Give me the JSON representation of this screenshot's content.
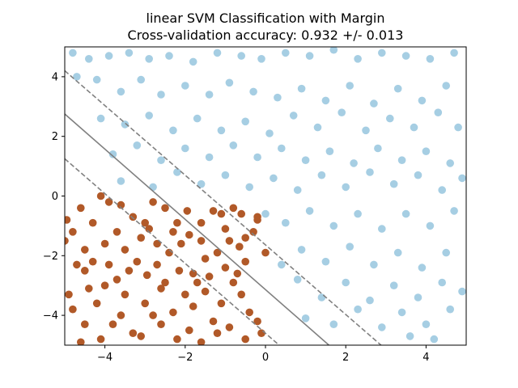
{
  "chart_data": {
    "type": "scatter",
    "title": "linear SVM Classification with Margin",
    "subtitle": "Cross-validation accuracy: 0.932 +/- 0.013",
    "xlim": [
      -5,
      5
    ],
    "ylim": [
      -5,
      5
    ],
    "x_ticks": [
      -4,
      -2,
      0,
      2,
      4
    ],
    "y_ticks": [
      -4,
      -2,
      0,
      2,
      4
    ],
    "x_tick_labels": [
      "−4",
      "−2",
      "0",
      "2",
      "4"
    ],
    "y_tick_labels": [
      "−4",
      "−2",
      "0",
      "2",
      "4"
    ],
    "grid": false,
    "decision_boundary": {
      "points": [
        [
          -5,
          2.75
        ],
        [
          1.58,
          -5
        ]
      ],
      "style": "solid",
      "color": "#808080"
    },
    "margins": [
      {
        "points": [
          [
            -5,
            4.2
          ],
          [
            2.88,
            -5
          ]
        ],
        "style": "dashed",
        "color": "#808080"
      },
      {
        "points": [
          [
            -5,
            1.25
          ],
          [
            0.34,
            -5
          ]
        ],
        "style": "dashed",
        "color": "#808080"
      }
    ],
    "colors": {
      "class_0": "#b15928",
      "class_1": "#a6cee3"
    },
    "series": [
      {
        "color": "#b15928",
        "points": [
          [
            -4.95,
            -0.8
          ],
          [
            -4.8,
            -1.2
          ],
          [
            -4.6,
            -0.4
          ],
          [
            -4.5,
            -1.8
          ],
          [
            -4.3,
            -0.9
          ],
          [
            -4.1,
            0.0
          ],
          [
            -3.9,
            -0.2
          ],
          [
            -3.6,
            -0.3
          ],
          [
            -3.3,
            -0.7
          ],
          [
            -3.0,
            -0.9
          ],
          [
            -2.8,
            -0.2
          ],
          [
            -2.5,
            -0.4
          ],
          [
            -2.2,
            -0.9
          ],
          [
            -1.9,
            -1.3
          ],
          [
            -1.6,
            -1.5
          ],
          [
            -1.3,
            -0.5
          ],
          [
            -1.1,
            -0.6
          ],
          [
            -0.8,
            -0.4
          ],
          [
            -0.6,
            -0.6
          ],
          [
            -0.2,
            -0.8
          ],
          [
            -5.0,
            -1.5
          ],
          [
            -4.7,
            -2.3
          ],
          [
            -4.5,
            -2.5
          ],
          [
            -4.3,
            -2.2
          ],
          [
            -3.9,
            -2.3
          ],
          [
            -3.5,
            -1.8
          ],
          [
            -3.2,
            -2.2
          ],
          [
            -2.9,
            -1.1
          ],
          [
            -2.7,
            -2.3
          ],
          [
            -2.4,
            -1.9
          ],
          [
            -2.1,
            -1.6
          ],
          [
            -1.8,
            -2.6
          ],
          [
            -1.5,
            -2.1
          ],
          [
            -1.2,
            -1.9
          ],
          [
            -0.9,
            -1.5
          ],
          [
            -0.5,
            -1.4
          ],
          [
            -0.3,
            -1.2
          ],
          [
            0.0,
            -1.9
          ],
          [
            -4.8,
            -3.8
          ],
          [
            -4.5,
            -4.3
          ],
          [
            -4.2,
            -3.6
          ],
          [
            -4.0,
            -3.0
          ],
          [
            -3.8,
            -4.3
          ],
          [
            -3.5,
            -3.3
          ],
          [
            -3.3,
            -4.6
          ],
          [
            -3.0,
            -3.6
          ],
          [
            -2.8,
            -4.0
          ],
          [
            -2.6,
            -3.1
          ],
          [
            -2.3,
            -3.9
          ],
          [
            -2.0,
            -3.3
          ],
          [
            -1.8,
            -3.7
          ],
          [
            -1.5,
            -3.2
          ],
          [
            -1.3,
            -4.2
          ],
          [
            -1.1,
            -3.6
          ],
          [
            -0.8,
            -2.9
          ],
          [
            -0.6,
            -3.3
          ],
          [
            -0.4,
            -3.9
          ],
          [
            -0.2,
            -4.2
          ],
          [
            -4.6,
            -4.9
          ],
          [
            -4.1,
            -4.8
          ],
          [
            -3.6,
            -4.0
          ],
          [
            -3.1,
            -4.7
          ],
          [
            -2.6,
            -4.3
          ],
          [
            -2.2,
            -4.8
          ],
          [
            -1.9,
            -4.5
          ],
          [
            -1.6,
            -4.9
          ],
          [
            -1.2,
            -4.6
          ],
          [
            -0.9,
            -4.4
          ],
          [
            -0.5,
            -4.8
          ],
          [
            -0.1,
            -4.6
          ],
          [
            -4.9,
            -3.3
          ],
          [
            -4.4,
            -3.1
          ],
          [
            -3.7,
            -2.8
          ],
          [
            -3.4,
            -2.5
          ],
          [
            -2.95,
            -2.65
          ],
          [
            -2.5,
            -2.9
          ],
          [
            -2.15,
            -2.5
          ],
          [
            -1.7,
            -2.9
          ],
          [
            -1.4,
            -2.7
          ],
          [
            -1.0,
            -2.4
          ],
          [
            -0.7,
            -2.6
          ],
          [
            -0.5,
            -2.2
          ],
          [
            -4.0,
            -1.6
          ],
          [
            -3.7,
            -1.2
          ],
          [
            -3.1,
            -1.4
          ],
          [
            -2.7,
            -1.6
          ],
          [
            -2.3,
            -1.2
          ],
          [
            -1.95,
            -0.5
          ],
          [
            -1.6,
            -0.9
          ],
          [
            -1.0,
            -1.1
          ],
          [
            -0.65,
            -1.7
          ],
          [
            -0.2,
            -0.7
          ]
        ]
      },
      {
        "color": "#a6cee3",
        "points": [
          [
            -4.8,
            4.8
          ],
          [
            -4.4,
            4.6
          ],
          [
            -3.9,
            4.7
          ],
          [
            -3.4,
            4.8
          ],
          [
            -2.9,
            4.6
          ],
          [
            -2.4,
            4.7
          ],
          [
            -1.8,
            4.5
          ],
          [
            -1.2,
            4.8
          ],
          [
            -0.6,
            4.7
          ],
          [
            -0.1,
            4.6
          ],
          [
            0.5,
            4.8
          ],
          [
            1.1,
            4.7
          ],
          [
            1.7,
            4.9
          ],
          [
            2.3,
            4.6
          ],
          [
            2.9,
            4.8
          ],
          [
            3.5,
            4.7
          ],
          [
            4.1,
            4.6
          ],
          [
            4.7,
            4.8
          ],
          [
            -4.7,
            4.0
          ],
          [
            -4.2,
            3.9
          ],
          [
            -3.6,
            3.5
          ],
          [
            -3.1,
            3.9
          ],
          [
            -2.6,
            3.4
          ],
          [
            -2.0,
            3.7
          ],
          [
            -1.4,
            3.4
          ],
          [
            -0.9,
            3.8
          ],
          [
            -0.3,
            3.5
          ],
          [
            0.3,
            3.3
          ],
          [
            0.9,
            3.6
          ],
          [
            1.5,
            3.2
          ],
          [
            2.1,
            3.7
          ],
          [
            2.7,
            3.1
          ],
          [
            3.3,
            3.6
          ],
          [
            3.9,
            3.2
          ],
          [
            4.5,
            3.7
          ],
          [
            -4.1,
            2.6
          ],
          [
            -3.5,
            2.4
          ],
          [
            -2.9,
            2.7
          ],
          [
            -2.3,
            2.2
          ],
          [
            -1.7,
            2.6
          ],
          [
            -1.1,
            2.2
          ],
          [
            -0.5,
            2.5
          ],
          [
            0.1,
            2.1
          ],
          [
            0.7,
            2.7
          ],
          [
            1.3,
            2.3
          ],
          [
            1.9,
            2.8
          ],
          [
            2.5,
            2.2
          ],
          [
            3.1,
            2.6
          ],
          [
            3.7,
            2.3
          ],
          [
            4.3,
            2.8
          ],
          [
            4.8,
            2.3
          ],
          [
            -3.8,
            1.4
          ],
          [
            -3.2,
            1.7
          ],
          [
            -2.6,
            1.2
          ],
          [
            -2.0,
            1.6
          ],
          [
            -1.4,
            1.3
          ],
          [
            -0.8,
            1.7
          ],
          [
            -0.2,
            1.3
          ],
          [
            0.4,
            1.6
          ],
          [
            1.0,
            1.2
          ],
          [
            1.6,
            1.5
          ],
          [
            2.2,
            1.1
          ],
          [
            2.8,
            1.6
          ],
          [
            3.4,
            1.2
          ],
          [
            4.0,
            1.5
          ],
          [
            4.6,
            1.1
          ],
          [
            -3.6,
            0.5
          ],
          [
            -2.8,
            0.3
          ],
          [
            -2.2,
            0.8
          ],
          [
            -1.6,
            0.4
          ],
          [
            -1.0,
            0.7
          ],
          [
            -0.4,
            0.3
          ],
          [
            0.2,
            0.6
          ],
          [
            0.8,
            0.2
          ],
          [
            1.4,
            0.7
          ],
          [
            2.0,
            0.3
          ],
          [
            2.6,
            0.8
          ],
          [
            3.2,
            0.4
          ],
          [
            3.8,
            0.7
          ],
          [
            4.4,
            0.2
          ],
          [
            4.9,
            0.6
          ],
          [
            0.0,
            -0.6
          ],
          [
            0.5,
            -0.9
          ],
          [
            1.1,
            -0.5
          ],
          [
            1.7,
            -1.0
          ],
          [
            2.3,
            -0.6
          ],
          [
            2.9,
            -1.1
          ],
          [
            3.5,
            -0.6
          ],
          [
            4.1,
            -1.0
          ],
          [
            4.7,
            -0.5
          ],
          [
            0.4,
            -2.3
          ],
          [
            0.9,
            -1.8
          ],
          [
            1.5,
            -2.2
          ],
          [
            2.1,
            -1.7
          ],
          [
            2.7,
            -2.3
          ],
          [
            3.3,
            -1.9
          ],
          [
            3.9,
            -2.4
          ],
          [
            4.5,
            -1.9
          ],
          [
            0.8,
            -2.8
          ],
          [
            1.4,
            -3.4
          ],
          [
            2.0,
            -2.9
          ],
          [
            2.6,
            -3.5
          ],
          [
            3.2,
            -3.0
          ],
          [
            3.8,
            -3.4
          ],
          [
            4.4,
            -2.9
          ],
          [
            4.9,
            -3.2
          ],
          [
            1.0,
            -4.1
          ],
          [
            1.7,
            -4.3
          ],
          [
            2.3,
            -3.8
          ],
          [
            2.9,
            -4.4
          ],
          [
            3.4,
            -3.9
          ],
          [
            4.0,
            -4.3
          ],
          [
            4.6,
            -3.8
          ],
          [
            4.2,
            -4.8
          ],
          [
            3.6,
            -4.7
          ]
        ]
      }
    ]
  }
}
